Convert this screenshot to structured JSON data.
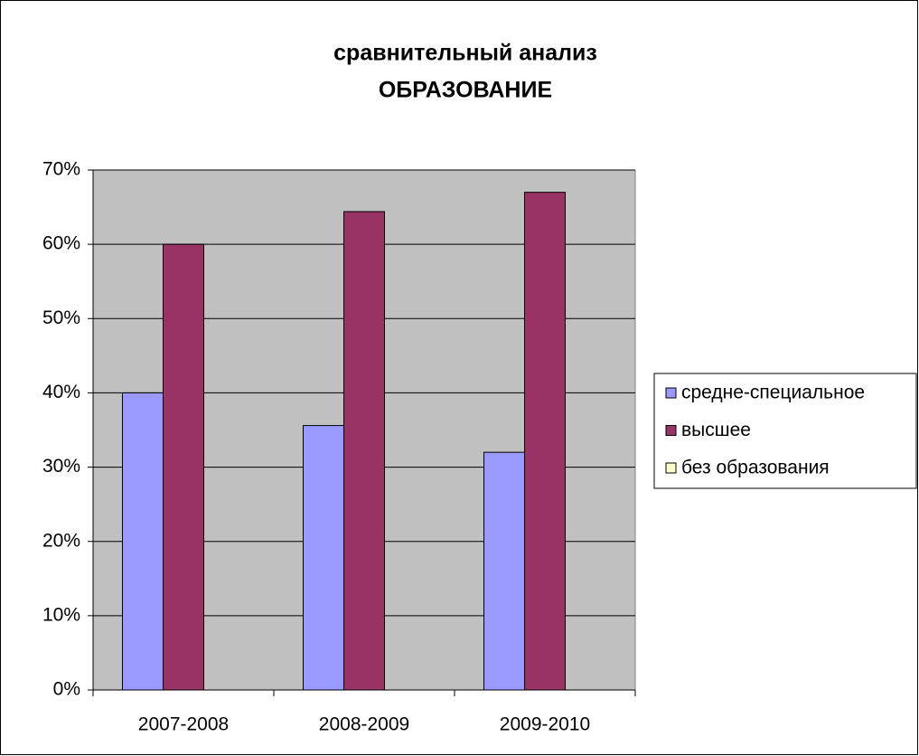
{
  "chart_data": {
    "type": "bar",
    "title": [
      "сравнительный анализ",
      "ОБРАЗОВАНИЕ"
    ],
    "categories": [
      "2007-2008",
      "2008-2009",
      "2009-2010"
    ],
    "series": [
      {
        "name": "средне-специальное",
        "color": "#9999ff",
        "values": [
          40,
          35.6,
          32
        ]
      },
      {
        "name": "высшее",
        "color": "#993366",
        "values": [
          60,
          64.4,
          67
        ]
      },
      {
        "name": "без образования",
        "color": "#ffffcc",
        "values": [
          0,
          0,
          0
        ]
      }
    ],
    "ylim": [
      0,
      70
    ],
    "yticks": [
      {
        "value": 0,
        "label": "0%"
      },
      {
        "value": 10,
        "label": "10%"
      },
      {
        "value": 20,
        "label": "20%"
      },
      {
        "value": 30,
        "label": "30%"
      },
      {
        "value": 40,
        "label": "40%"
      },
      {
        "value": 50,
        "label": "50%"
      },
      {
        "value": 60,
        "label": "60%"
      },
      {
        "value": 70,
        "label": "70%"
      }
    ],
    "grid": true,
    "plot_background": "#c0c0c0",
    "legend": "right"
  }
}
